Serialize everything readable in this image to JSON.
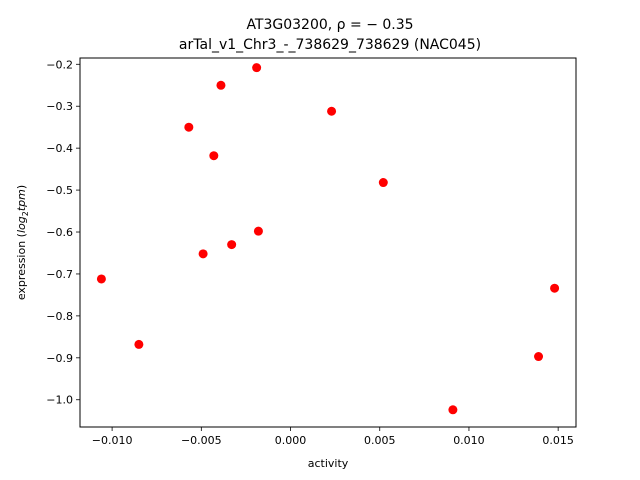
{
  "chart_data": {
    "type": "scatter",
    "title_line1": "AT3G03200, ρ = − 0.35",
    "title_line2": "arTal_v1_Chr3_-_738629_738629 (NAC045)",
    "xlabel": "activity",
    "ylabel_prefix": "expression (",
    "ylabel_math": "log",
    "ylabel_sub": "2",
    "ylabel_math2": "tpm",
    "ylabel_suffix": ")",
    "xlim": [
      -0.0118,
      0.016
    ],
    "ylim": [
      -1.065,
      -0.185
    ],
    "x_ticks": [
      -0.01,
      -0.005,
      0.0,
      0.005,
      0.01,
      0.015
    ],
    "x_tick_labels": [
      "−0.010",
      "−0.005",
      "0.000",
      "0.005",
      "0.010",
      "0.015"
    ],
    "y_ticks": [
      -0.2,
      -0.3,
      -0.4,
      -0.5,
      -0.6,
      -0.7,
      -0.8,
      -0.9,
      -1.0
    ],
    "y_tick_labels": [
      "−0.2",
      "−0.3",
      "−0.4",
      "−0.5",
      "−0.6",
      "−0.7",
      "−0.8",
      "−0.9",
      "−1.0"
    ],
    "marker_color": "#ff0000",
    "points": [
      {
        "x": -0.0106,
        "y": -0.712
      },
      {
        "x": -0.0085,
        "y": -0.868
      },
      {
        "x": -0.0057,
        "y": -0.35
      },
      {
        "x": -0.0049,
        "y": -0.652
      },
      {
        "x": -0.0043,
        "y": -0.418
      },
      {
        "x": -0.0039,
        "y": -0.25
      },
      {
        "x": -0.0033,
        "y": -0.63
      },
      {
        "x": -0.0019,
        "y": -0.208
      },
      {
        "x": -0.0018,
        "y": -0.598
      },
      {
        "x": 0.0023,
        "y": -0.312
      },
      {
        "x": 0.0052,
        "y": -0.482
      },
      {
        "x": 0.0091,
        "y": -1.024
      },
      {
        "x": 0.0139,
        "y": -0.897
      },
      {
        "x": 0.0148,
        "y": -0.734
      }
    ]
  }
}
